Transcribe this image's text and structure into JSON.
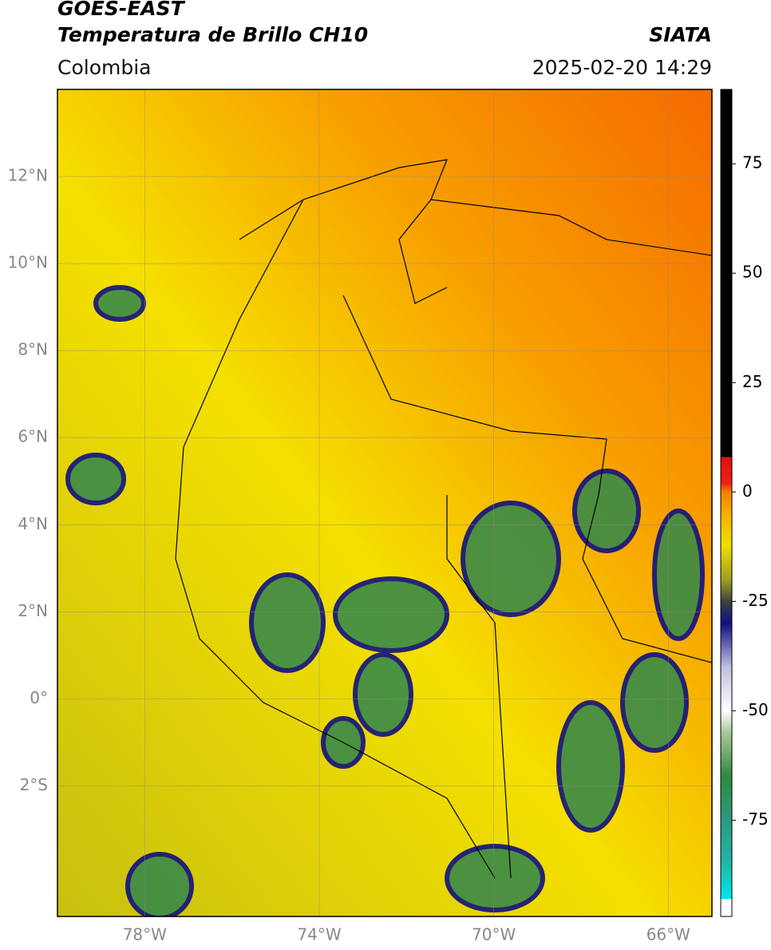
{
  "header": {
    "satellite": "GOES-EAST",
    "product": "Temperatura de Brillo CH10",
    "source": "SIATA",
    "region": "Colombia",
    "timestamp": "2025-02-20 14:29"
  },
  "map": {
    "xlim": [
      -80,
      -65
    ],
    "ylim": [
      -5,
      14
    ],
    "xticks": [
      {
        "value": -78,
        "label": "78°W"
      },
      {
        "value": -74,
        "label": "74°W"
      },
      {
        "value": -70,
        "label": "70°W"
      },
      {
        "value": -66,
        "label": "66°W"
      }
    ],
    "yticks": [
      {
        "value": -2,
        "label": "2°S"
      },
      {
        "value": 0,
        "label": "0°"
      },
      {
        "value": 2,
        "label": "2°N"
      },
      {
        "value": 4,
        "label": "4°N"
      },
      {
        "value": 6,
        "label": "6°N"
      },
      {
        "value": 8,
        "label": "8°N"
      },
      {
        "value": 10,
        "label": "10°N"
      },
      {
        "value": 12,
        "label": "12°N"
      }
    ],
    "grid": true
  },
  "colorbar": {
    "clim": [
      -97,
      92
    ],
    "ticks": [
      75,
      50,
      25,
      0,
      -25,
      -50,
      -75
    ],
    "stops": [
      {
        "value": -97,
        "color": "#ffffff"
      },
      {
        "value": -93,
        "color": "#ffffff"
      },
      {
        "value": -93,
        "color": "#00e8e8"
      },
      {
        "value": -85,
        "color": "#20b8a8"
      },
      {
        "value": -75,
        "color": "#2a9a80"
      },
      {
        "value": -65,
        "color": "#2e8b3e"
      },
      {
        "value": -55,
        "color": "#a8c898"
      },
      {
        "value": -50,
        "color": "#ffffff"
      },
      {
        "value": -40,
        "color": "#c0c0e0"
      },
      {
        "value": -30,
        "color": "#101080"
      },
      {
        "value": -25,
        "color": "#404040"
      },
      {
        "value": -20,
        "color": "#a0a020"
      },
      {
        "value": -12,
        "color": "#f0e000"
      },
      {
        "value": -5,
        "color": "#f5b000"
      },
      {
        "value": 0,
        "color": "#f58000"
      },
      {
        "value": 2,
        "color": "#f02010"
      },
      {
        "value": 8,
        "color": "#e01010"
      },
      {
        "value": 8,
        "color": "#000000"
      },
      {
        "value": 92,
        "color": "#000000"
      }
    ]
  }
}
